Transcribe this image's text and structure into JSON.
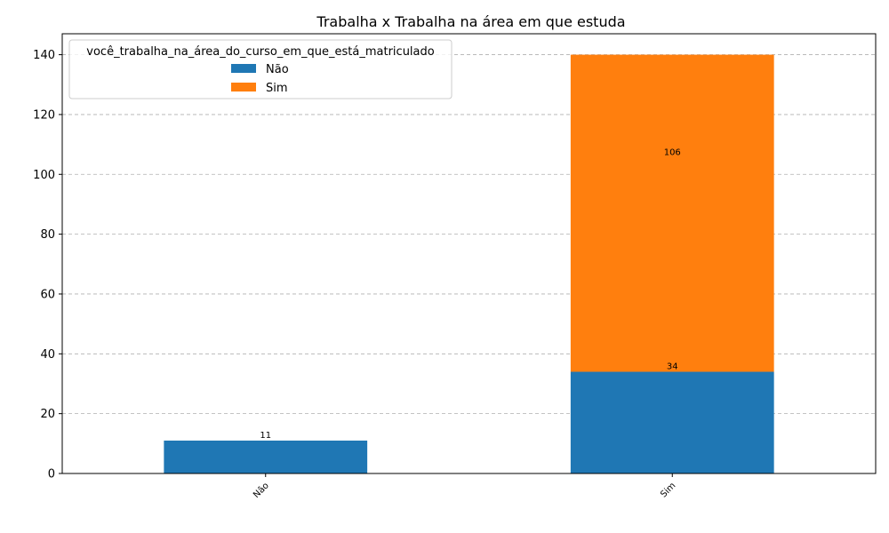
{
  "chart_data": {
    "type": "bar",
    "stacked": true,
    "title": "Trabalha x Trabalha na área em que estuda",
    "xlabel": "",
    "ylabel": "",
    "categories": [
      "Não",
      "Sim"
    ],
    "series": [
      {
        "name": "Não",
        "values": [
          11,
          34
        ],
        "color": "#1f77b4"
      },
      {
        "name": "Sim",
        "values": [
          0,
          106
        ],
        "color": "#ff7f0e"
      }
    ],
    "data_labels": [
      {
        "category": "Não",
        "series": "Não",
        "text": "11"
      },
      {
        "category": "Sim",
        "series": "Não",
        "text": "34"
      },
      {
        "category": "Sim",
        "series": "Sim",
        "text": "106"
      }
    ],
    "ylim": [
      0,
      147
    ],
    "yticks": [
      0,
      20,
      40,
      60,
      80,
      100,
      120,
      140
    ],
    "grid": "y-dashed",
    "legend": {
      "title": "você_trabalha_na_área_do_curso_em_que_está_matriculado",
      "placement": "top-left"
    }
  }
}
